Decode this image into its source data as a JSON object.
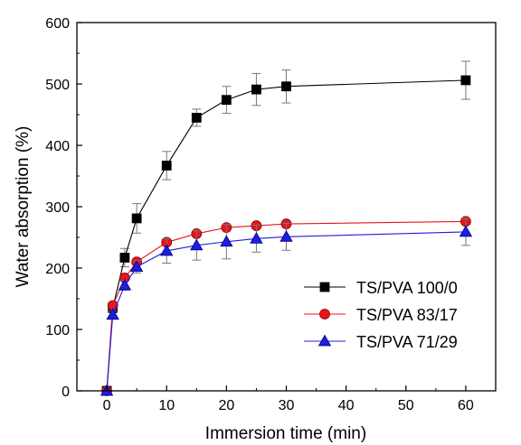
{
  "chart_data": {
    "type": "line",
    "xlabel": "Immersion time (min)",
    "ylabel": "Water absorption (%)",
    "xlim": [
      -5,
      65
    ],
    "ylim": [
      0,
      600
    ],
    "xticks": [
      0,
      10,
      20,
      30,
      40,
      50,
      60
    ],
    "yticks": [
      0,
      100,
      200,
      300,
      400,
      500,
      600
    ],
    "grid": false,
    "legend_position": "right-middle",
    "series": [
      {
        "name": "TS/PVA 100/0",
        "color": "#000000",
        "marker": "square",
        "x": [
          0,
          1,
          3,
          5,
          10,
          15,
          20,
          25,
          30,
          60
        ],
        "y": [
          0,
          135,
          217,
          281,
          367,
          445,
          474,
          491,
          496,
          506
        ],
        "err": [
          0,
          5,
          15,
          24,
          23,
          14,
          22,
          26,
          27,
          31
        ]
      },
      {
        "name": "TS/PVA 83/17",
        "color": "#e8141e",
        "marker": "circle",
        "x": [
          0,
          1,
          3,
          5,
          10,
          15,
          20,
          25,
          30,
          60
        ],
        "y": [
          0,
          139,
          184,
          210,
          242,
          256,
          266,
          269,
          272,
          276
        ],
        "err": [
          0,
          0,
          0,
          0,
          0,
          0,
          0,
          0,
          0,
          0
        ]
      },
      {
        "name": "TS/PVA 71/29",
        "color": "#1e1edc",
        "marker": "triangle",
        "x": [
          0,
          1,
          3,
          5,
          10,
          15,
          20,
          25,
          30,
          60
        ],
        "y": [
          0,
          124,
          172,
          202,
          228,
          237,
          243,
          248,
          251,
          259
        ],
        "err": [
          0,
          6,
          8,
          10,
          20,
          24,
          28,
          22,
          22,
          22
        ]
      }
    ]
  }
}
